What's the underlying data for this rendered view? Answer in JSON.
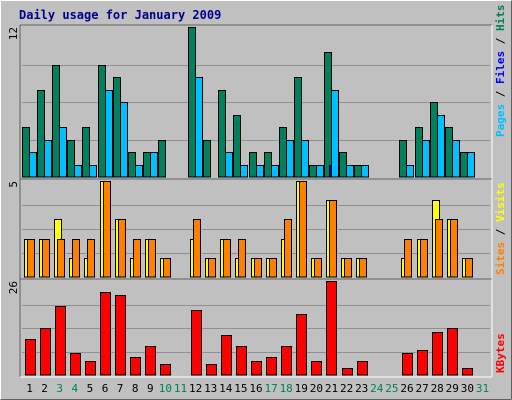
{
  "title": "Daily usage for January 2009",
  "colors": {
    "background": "#c0c0c0",
    "panel": "#c0c0c0",
    "grid": "#909090",
    "title": "#00008b",
    "hits": "#00805c",
    "files": "#0000ff",
    "pages": "#00c0ff",
    "visits": "#ffff00",
    "sites": "#ff8000",
    "kbytes": "#ff0000",
    "weekday_label": "#000000",
    "weekend_label": "#00805c"
  },
  "chart_data": [
    {
      "type": "bar",
      "name": "hits-files-pages",
      "y_max_label": "12",
      "ylim": [
        0,
        12
      ],
      "categories": [
        "1",
        "2",
        "3",
        "4",
        "5",
        "6",
        "7",
        "8",
        "9",
        "10",
        "11",
        "12",
        "13",
        "14",
        "15",
        "16",
        "17",
        "18",
        "19",
        "20",
        "21",
        "22",
        "23",
        "24",
        "25",
        "26",
        "27",
        "28",
        "29",
        "30",
        "31"
      ],
      "series": [
        {
          "name": "Hits",
          "values": [
            4,
            7,
            9,
            3,
            4,
            9,
            8,
            2,
            2,
            3,
            0,
            12,
            3,
            7,
            5,
            2,
            2,
            4,
            8,
            1,
            10,
            2,
            1,
            0,
            0,
            3,
            4,
            6,
            4,
            2,
            0
          ]
        },
        {
          "name": "Files",
          "values": [
            0,
            0,
            0,
            0,
            0,
            0,
            0,
            0,
            0,
            0,
            0,
            0,
            0,
            0,
            0,
            0,
            0,
            0,
            0,
            0,
            1,
            0,
            0,
            0,
            0,
            0,
            0,
            0,
            0,
            0,
            0
          ]
        },
        {
          "name": "Pages",
          "values": [
            2,
            3,
            4,
            1,
            1,
            7,
            6,
            1,
            2,
            0,
            0,
            8,
            0,
            2,
            1,
            1,
            1,
            3,
            3,
            1,
            7,
            1,
            1,
            0,
            0,
            1,
            3,
            5,
            3,
            2,
            0
          ]
        }
      ]
    },
    {
      "type": "bar",
      "name": "visits-sites",
      "y_max_label": "5",
      "ylim": [
        0,
        5
      ],
      "categories": [
        "1",
        "2",
        "3",
        "4",
        "5",
        "6",
        "7",
        "8",
        "9",
        "10",
        "11",
        "12",
        "13",
        "14",
        "15",
        "16",
        "17",
        "18",
        "19",
        "20",
        "21",
        "22",
        "23",
        "24",
        "25",
        "26",
        "27",
        "28",
        "29",
        "30",
        "31"
      ],
      "series": [
        {
          "name": "Visits",
          "values": [
            2,
            2,
            3,
            1,
            1,
            5,
            3,
            1,
            2,
            1,
            0,
            2,
            1,
            2,
            1,
            1,
            1,
            2,
            5,
            1,
            4,
            1,
            1,
            0,
            0,
            1,
            2,
            4,
            3,
            1,
            0
          ]
        },
        {
          "name": "Sites",
          "values": [
            2,
            2,
            2,
            2,
            2,
            5,
            3,
            2,
            2,
            1,
            0,
            3,
            1,
            2,
            2,
            1,
            1,
            3,
            5,
            1,
            4,
            1,
            1,
            0,
            0,
            2,
            2,
            3,
            3,
            1,
            0
          ]
        }
      ]
    },
    {
      "type": "bar",
      "name": "kbytes",
      "y_max_label": "26",
      "ylim": [
        0,
        26
      ],
      "categories": [
        "1",
        "2",
        "3",
        "4",
        "5",
        "6",
        "7",
        "8",
        "9",
        "10",
        "11",
        "12",
        "13",
        "14",
        "15",
        "16",
        "17",
        "18",
        "19",
        "20",
        "21",
        "22",
        "23",
        "24",
        "25",
        "26",
        "27",
        "28",
        "29",
        "30",
        "31"
      ],
      "series": [
        {
          "name": "KBytes",
          "values": [
            10,
            13,
            19,
            6,
            4,
            23,
            22,
            5,
            8,
            3,
            0,
            18,
            3,
            11,
            8,
            4,
            5,
            8,
            17,
            4,
            26,
            2,
            4,
            0,
            0,
            6,
            7,
            12,
            13,
            2,
            0
          ]
        }
      ]
    }
  ],
  "day_labels": {
    "days": [
      "1",
      "2",
      "3",
      "4",
      "5",
      "6",
      "7",
      "8",
      "9",
      "10",
      "11",
      "12",
      "13",
      "14",
      "15",
      "16",
      "17",
      "18",
      "19",
      "20",
      "21",
      "22",
      "23",
      "24",
      "25",
      "26",
      "27",
      "28",
      "29",
      "30",
      "31"
    ],
    "weekend": [
      false,
      false,
      true,
      true,
      false,
      false,
      false,
      false,
      false,
      true,
      true,
      false,
      false,
      false,
      false,
      false,
      true,
      true,
      false,
      false,
      false,
      false,
      false,
      true,
      true,
      false,
      false,
      false,
      false,
      false,
      true
    ]
  },
  "side_labels": {
    "top": [
      {
        "text": "Pages",
        "color": "#00c0ff"
      },
      {
        "text": " / ",
        "color": "#000000"
      },
      {
        "text": "Files",
        "color": "#0000ff"
      },
      {
        "text": " / ",
        "color": "#000000"
      },
      {
        "text": "Hits",
        "color": "#00805c"
      }
    ],
    "middle": [
      {
        "text": "Sites",
        "color": "#ff8000"
      },
      {
        "text": " / ",
        "color": "#000000"
      },
      {
        "text": "Visits",
        "color": "#ffff00"
      }
    ],
    "bottom": [
      {
        "text": "KBytes",
        "color": "#ff0000"
      }
    ]
  }
}
